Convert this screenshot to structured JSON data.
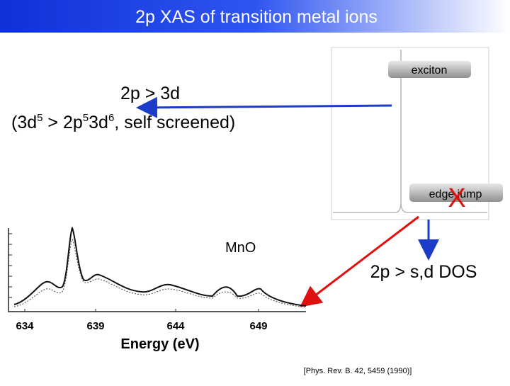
{
  "header": {
    "title": "2p XAS of transition metal ions"
  },
  "annotations": {
    "transition_line1": "2p > 3d",
    "transition_line2": [
      "(3d",
      "5",
      " > 2p",
      "5",
      "3d",
      "6",
      ", self screened)"
    ],
    "exciton": "exciton",
    "edge_jump": "edge jump",
    "cross": "X",
    "dos": "2p > s,d DOS",
    "reference": "[Phys. Rev. B. 42, 5459 (1990)]"
  },
  "figure": {
    "label": "MnO",
    "x_ticks": [
      "634",
      "639",
      "644",
      "649"
    ],
    "x_label": "Energy (eV)"
  }
}
